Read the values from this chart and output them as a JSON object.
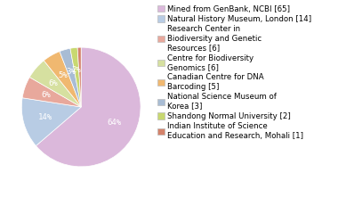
{
  "labels": [
    "Mined from GenBank, NCBI [65]",
    "Natural History Museum, London [14]",
    "Research Center in\nBiodiversity and Genetic\nResources [6]",
    "Centre for Biodiversity\nGenomics [6]",
    "Canadian Centre for DNA\nBarcoding [5]",
    "National Science Museum of\nKorea [3]",
    "Shandong Normal University [2]",
    "Indian Institute of Science\nEducation and Research, Mohali [1]"
  ],
  "values": [
    65,
    14,
    6,
    6,
    5,
    3,
    2,
    1
  ],
  "colors": [
    "#dbb8db",
    "#b8cce4",
    "#e8a89c",
    "#d6e0a0",
    "#f0b870",
    "#a8bcd4",
    "#c8d870",
    "#d4826a"
  ],
  "legend_fontsize": 6.2,
  "pct_fontsize": 6.5,
  "background_color": "#ffffff"
}
